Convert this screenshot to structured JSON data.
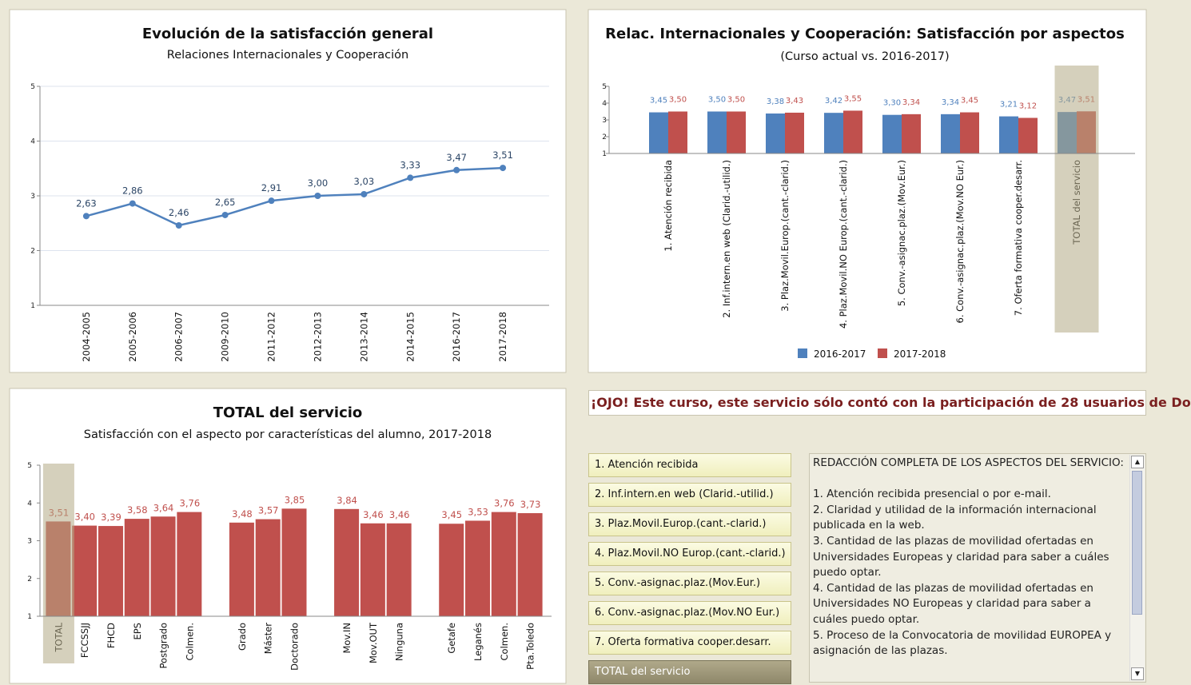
{
  "chart_data": [
    {
      "type": "line",
      "title": "Evolución de la satisfacción general",
      "subtitle": "Relaciones Internacionales y Cooperación",
      "categories": [
        "2004-2005",
        "2005-2006",
        "2006-2007",
        "2009-2010",
        "2011-2012",
        "2012-2013",
        "2013-2014",
        "2014-2015",
        "2016-2017",
        "2017-2018"
      ],
      "values": [
        2.63,
        2.86,
        2.46,
        2.65,
        2.91,
        3.0,
        3.03,
        3.33,
        3.47,
        3.51
      ],
      "value_labels": [
        "2,63",
        "2,86",
        "2,46",
        "2,65",
        "2,91",
        "3,00",
        "3,03",
        "3,33",
        "3,47",
        "3,51"
      ],
      "color": "#4f81bd",
      "ylim": [
        1,
        5
      ],
      "yticks": [
        1,
        2,
        3,
        4,
        5
      ],
      "grid": true
    },
    {
      "type": "bar",
      "title": "Relac. Internacionales y Cooperación: Satisfacción por aspectos",
      "subtitle": "(Curso actual vs. 2016-2017)",
      "categories": [
        "1. Atención recibida",
        "2. Inf.intern.en web (Clarid.-utilid.)",
        "3. Plaz.Movil.Europ.(cant.-clarid.)",
        "4. Plaz.Movil.NO Europ.(cant.-clarid.)",
        "5. Conv.-asignac.plaz.(Mov.Eur.)",
        "6. Conv.-asignac.plaz.(Mov.NO Eur.)",
        "7. Oferta formativa cooper.desarr.",
        "TOTAL del servicio"
      ],
      "series": [
        {
          "name": "2016-2017",
          "color": "#4f81bd",
          "values": [
            3.45,
            3.5,
            3.38,
            3.42,
            3.3,
            3.34,
            3.21,
            3.47
          ],
          "value_labels": [
            "3,45",
            "3,50",
            "3,38",
            "3,42",
            "3,30",
            "3,34",
            "3,21",
            "3,47"
          ]
        },
        {
          "name": "2017-2018",
          "color": "#c0504d",
          "values": [
            3.5,
            3.5,
            3.43,
            3.55,
            3.34,
            3.45,
            3.12,
            3.51
          ],
          "value_labels": [
            "3,50",
            "3,50",
            "3,43",
            "3,55",
            "3,34",
            "3,45",
            "3,12",
            "3,51"
          ]
        }
      ],
      "ylim": [
        1,
        5
      ],
      "yticks": [
        1,
        2,
        3,
        4,
        5
      ],
      "grid": false,
      "legend": "bottom"
    },
    {
      "type": "bar",
      "title": "TOTAL del servicio",
      "subtitle": "Satisfacción con el aspecto por características del alumno, 2017-2018",
      "categories": [
        "TOTAL",
        "FCCSSJJ",
        "FHCD",
        "EPS",
        "Postgrado",
        "Colmen.",
        null,
        "Grado",
        "Máster",
        "Doctorado",
        null,
        "Mov.IN",
        "Mov.OUT",
        "Ninguna",
        null,
        "Getafe",
        "Leganés",
        "Colmen.",
        "Pta.Toledo"
      ],
      "values": [
        3.51,
        3.4,
        3.39,
        3.58,
        3.64,
        3.76,
        null,
        3.48,
        3.57,
        3.85,
        null,
        3.84,
        3.46,
        3.46,
        null,
        3.45,
        3.53,
        3.76,
        3.73
      ],
      "value_labels": [
        "3,51",
        "3,40",
        "3,39",
        "3,58",
        "3,64",
        "3,76",
        null,
        "3,48",
        "3,57",
        "3,85",
        null,
        "3,84",
        "3,46",
        "3,46",
        null,
        "3,45",
        "3,53",
        "3,76",
        "3,73"
      ],
      "color": "#c0504d",
      "ylim": [
        1,
        5
      ],
      "yticks": [
        1,
        2,
        3,
        4,
        5
      ],
      "grid": false
    }
  ],
  "notice": "¡OJO! Este curso, este servicio sólo contó con la participación de 28 usuarios de Do",
  "buttons": [
    "1. Atención recibida",
    "2. Inf.intern.en web (Clarid.-utilid.)",
    "3. Plaz.Movil.Europ.(cant.-clarid.)",
    "4. Plaz.Movil.NO Europ.(cant.-clarid.)",
    "5. Conv.-asignac.plaz.(Mov.Eur.)",
    "6. Conv.-asignac.plaz.(Mov.NO Eur.)",
    "7. Oferta formativa cooper.desarr.",
    "TOTAL del servicio"
  ],
  "text_panel": {
    "heading": "REDACCIÓN COMPLETA DE LOS ASPECTOS DEL SERVICIO:",
    "items": [
      "1. Atención recibida presencial o por e-mail.",
      "2. Claridad y utilidad de la información internacional publicada en la web.",
      "3. Cantidad de las plazas de movilidad ofertadas en Universidades Europeas y claridad para saber a cuáles puedo optar.",
      "4. Cantidad de las plazas de movilidad ofertadas en Universidades NO Europeas y claridad para saber a cuáles puedo optar.",
      "5. Proceso de la Convocatoria de movilidad EUROPEA y asignación de las plazas."
    ]
  }
}
